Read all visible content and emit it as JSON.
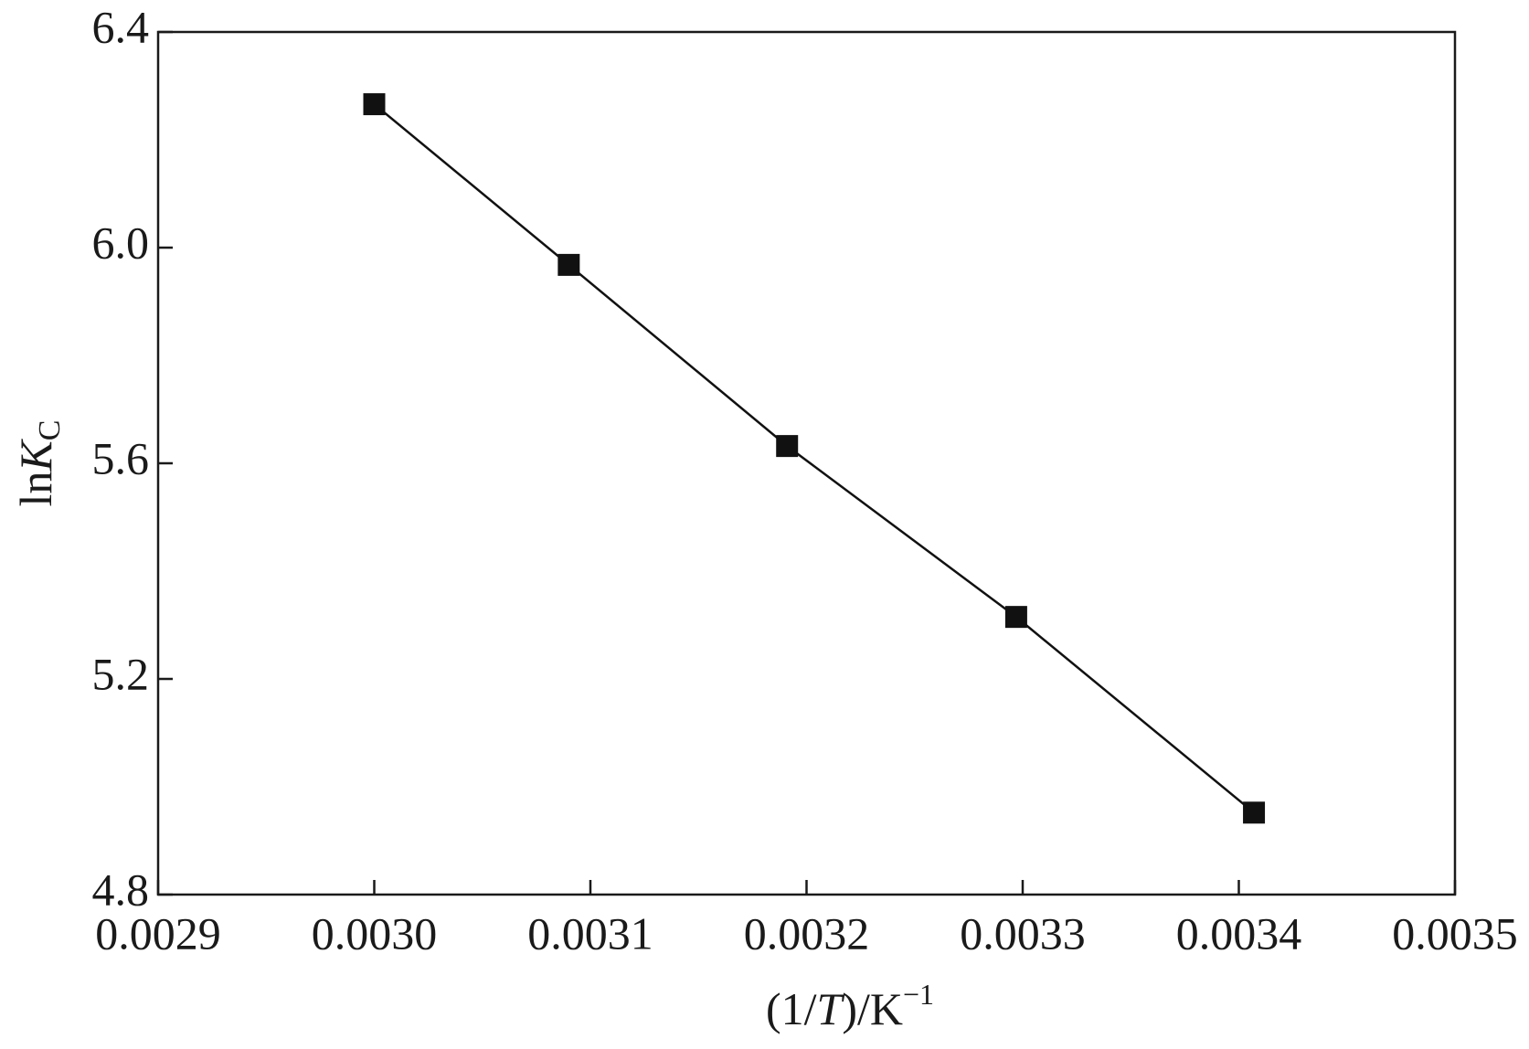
{
  "chart_data": {
    "type": "scatter",
    "xlabel": [
      "(1/",
      "T",
      ")/K",
      "−1"
    ],
    "ylabel": [
      "ln",
      "K",
      "C"
    ],
    "x": [
      0.003,
      0.00309,
      0.003191,
      0.003297,
      0.003407
    ],
    "series": [
      {
        "color": "#111111",
        "values": [
          6.266,
          5.968,
          5.632,
          5.315,
          4.952
        ]
      }
    ],
    "line": true,
    "xlim": [
      0.0029,
      0.0035
    ],
    "xticks": [
      0.0029,
      {
        "value": 0.003,
        "label": "0.0030"
      },
      0.0031,
      0.0032,
      0.0033,
      0.0034,
      0.0035
    ],
    "ylim": [
      4.8,
      6.4
    ],
    "yticks": [
      4.8,
      5.2,
      5.6,
      {
        "value": 6,
        "label": "6.0"
      },
      6.4
    ]
  }
}
